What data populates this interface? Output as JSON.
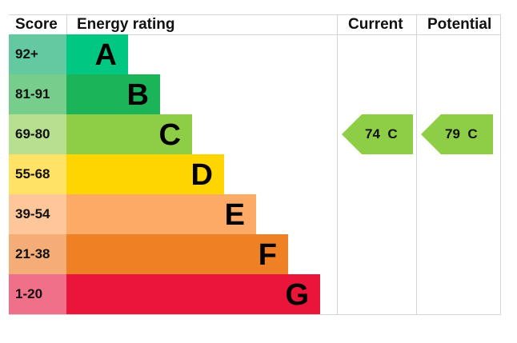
{
  "header": {
    "score": "Score",
    "energy_rating": "Energy rating",
    "current": "Current",
    "potential": "Potential"
  },
  "bands": [
    {
      "score": "92+",
      "letter": "A",
      "band_color": "#00c781",
      "score_color": "#64c8a0"
    },
    {
      "score": "81-91",
      "letter": "B",
      "band_color": "#1cb459",
      "score_color": "#77cd8c"
    },
    {
      "score": "69-80",
      "letter": "C",
      "band_color": "#8dce46",
      "score_color": "#b6e090"
    },
    {
      "score": "55-68",
      "letter": "D",
      "band_color": "#ffd500",
      "score_color": "#ffe266"
    },
    {
      "score": "39-54",
      "letter": "E",
      "band_color": "#fcaa65",
      "score_color": "#fdc79a"
    },
    {
      "score": "21-38",
      "letter": "F",
      "band_color": "#ef8023",
      "score_color": "#f5ad77"
    },
    {
      "score": "1-20",
      "letter": "G",
      "band_color": "#e9153b",
      "score_color": "#f07089"
    }
  ],
  "current": {
    "value": "74",
    "band": "C",
    "label": "74  C",
    "color": "#8dce46"
  },
  "potential": {
    "value": "79",
    "band": "C",
    "label": "79  C",
    "color": "#8dce46"
  },
  "chart_data": {
    "type": "bar",
    "title": "Energy rating",
    "categories": [
      "A",
      "B",
      "C",
      "D",
      "E",
      "F",
      "G"
    ],
    "score_ranges": [
      "92+",
      "81-91",
      "69-80",
      "55-68",
      "39-54",
      "21-38",
      "1-20"
    ],
    "bar_relative_lengths": [
      1,
      2,
      3,
      4,
      5,
      6,
      7
    ],
    "columns": [
      "Score",
      "Energy rating",
      "Current",
      "Potential"
    ],
    "series": [
      {
        "name": "Current",
        "value": 74,
        "band": "C"
      },
      {
        "name": "Potential",
        "value": 79,
        "band": "C"
      }
    ]
  }
}
